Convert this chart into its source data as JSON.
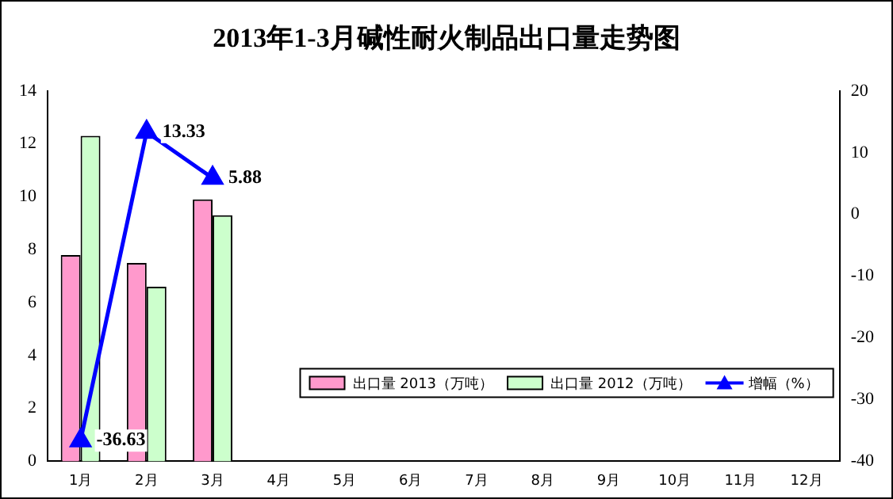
{
  "chart_data": {
    "type": "bar",
    "title": "2013年1-3月碱性耐火制品出口量走势图",
    "categories": [
      "1月",
      "2月",
      "3月",
      "4月",
      "5月",
      "6月",
      "7月",
      "8月",
      "9月",
      "10月",
      "11月",
      "12月"
    ],
    "series": [
      {
        "name": "出口量 2013（万吨）",
        "color": "#ff99cc",
        "values": [
          7.8,
          7.5,
          9.9,
          null,
          null,
          null,
          null,
          null,
          null,
          null,
          null,
          null
        ]
      },
      {
        "name": "出口量 2012（万吨）",
        "color": "#ccffcc",
        "values": [
          12.3,
          6.6,
          9.3,
          null,
          null,
          null,
          null,
          null,
          null,
          null,
          null,
          null
        ]
      },
      {
        "name": "增幅（%）",
        "type": "line",
        "axis": "y2",
        "color": "#0000ff",
        "marker": "triangle",
        "values": [
          -36.63,
          13.33,
          5.88,
          null,
          null,
          null,
          null,
          null,
          null,
          null,
          null,
          null
        ],
        "value_labels": [
          "-36.63",
          "13.33",
          "5.88",
          null,
          null,
          null,
          null,
          null,
          null,
          null,
          null,
          null
        ]
      }
    ],
    "ylim": [
      0,
      14
    ],
    "yticks": [
      0,
      2,
      4,
      6,
      8,
      10,
      12,
      14
    ],
    "y2lim": [
      -40,
      20
    ],
    "y2ticks": [
      -40,
      -30,
      -20,
      -10,
      0,
      10,
      20
    ],
    "grid": false,
    "legend": "bottom right"
  }
}
